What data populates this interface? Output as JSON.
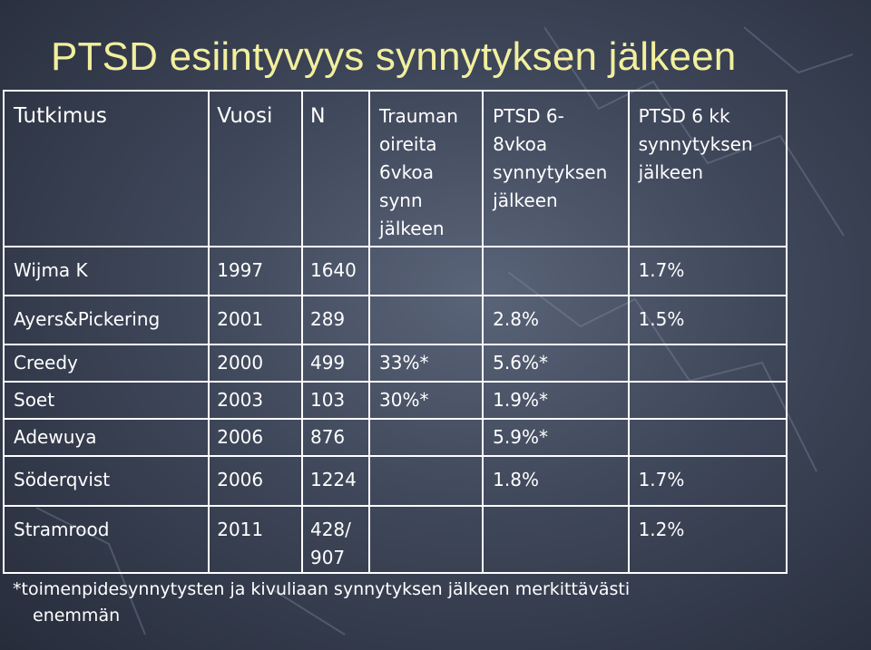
{
  "title": "PTSD esiintyvyys synnytyksen jälkeen",
  "table": {
    "headers": [
      [
        "Tutkimus"
      ],
      [
        "Vuosi"
      ],
      [
        "N"
      ],
      [
        "Trauman",
        "oireita",
        "6vkoa",
        "synn",
        "jälkeen"
      ],
      [
        "PTSD 6-",
        "8vkoa",
        "synnytyksen",
        "jälkeen"
      ],
      [
        "PTSD 6 kk",
        "synnytyksen",
        "jälkeen"
      ]
    ],
    "rows": [
      [
        "Wijma K",
        "1997",
        "1640",
        "",
        "",
        "1.7%"
      ],
      [
        "Ayers&Pickering",
        "2001",
        "289",
        "",
        "2.8%",
        "1.5%"
      ],
      [
        "Creedy",
        "2000",
        "499",
        "33%*",
        "5.6%*",
        ""
      ],
      [
        "Soet",
        "2003",
        "103",
        "30%*",
        "1.9%*",
        ""
      ],
      [
        "Adewuya",
        "2006",
        "876",
        "",
        "5.9%*",
        ""
      ],
      [
        "Söderqvist",
        "2006",
        "1224",
        "",
        "1.8%",
        "1.7%"
      ],
      [
        "Stramrood",
        "2011",
        "428/ 907",
        "",
        "",
        "1.2%"
      ]
    ]
  },
  "footnote": {
    "line1": "*toimenpidesynnytysten ja kivuliaan synnytyksen jälkeen merkittävästi",
    "line2": "enemmän"
  }
}
